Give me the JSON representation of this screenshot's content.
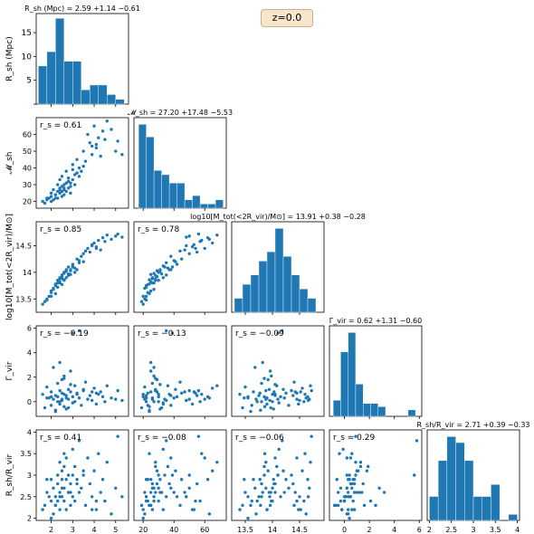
{
  "redshift_label": "z=0.0",
  "colors": {
    "accent": "#1f77b4",
    "annotation_bg": "#f5e6cc",
    "annotation_border": "#c9b48a"
  },
  "chart_data": {
    "type": "scatter",
    "subtype": "corner-plot",
    "variables": [
      {
        "id": "Rsh",
        "title": "R_sh (Mpc) = 2.59 +1.14 −0.61",
        "label": "R_sh (Mpc)",
        "range": [
          1.3,
          5.6
        ],
        "ticks": [
          2,
          3,
          4,
          5
        ],
        "hist_bins": {
          "edges": [
            1.4,
            1.8,
            2.2,
            2.6,
            3.0,
            3.4,
            3.8,
            4.2,
            4.6,
            5.0,
            5.4
          ],
          "counts": [
            8,
            11,
            18,
            9,
            9,
            3,
            4,
            4,
            2,
            1
          ],
          "ylim": [
            0,
            19
          ],
          "yticks": [
            0,
            5,
            10,
            15
          ]
        }
      },
      {
        "id": "Msh",
        "title": "𝓜_sh = 27.20 +17.48 −5.53",
        "label": "𝓜_sh",
        "range": [
          14,
          74
        ],
        "ticks": [
          20,
          40,
          60
        ],
        "hist_bins": {
          "edges": [
            17,
            22,
            27,
            32,
            37,
            42,
            47,
            52,
            57,
            62,
            67,
            72
          ],
          "counts": [
            20,
            17,
            9,
            8,
            6,
            6,
            2,
            3,
            1,
            1,
            2
          ]
        }
      },
      {
        "id": "Mtot",
        "title": "log10[M_tot(<2R_vir)/M⊙] = 13.91 +0.38 −0.28",
        "label": "log10[M_tot(<2R_vir)/M⊙]",
        "range": [
          13.25,
          14.95
        ],
        "ticks": [
          13.5,
          14.0,
          14.5
        ],
        "hist_bins": {
          "edges": [
            13.3,
            13.45,
            13.6,
            13.75,
            13.9,
            14.05,
            14.2,
            14.35,
            14.5,
            14.65,
            14.8
          ],
          "counts": [
            3,
            6,
            8,
            11,
            13,
            18,
            12,
            8,
            5,
            3
          ]
        }
      },
      {
        "id": "Gvir",
        "title": "Γ_vir = 0.62 +1.31 −0.60",
        "label": "Γ_vir",
        "range": [
          -1.2,
          6.2
        ],
        "ticks": [
          0,
          2,
          4,
          6
        ],
        "hist_bins": {
          "edges": [
            -0.9,
            -0.3,
            0.3,
            0.9,
            1.5,
            2.1,
            2.7,
            3.3,
            3.9,
            4.5,
            5.1,
            5.7
          ],
          "counts": [
            5,
            20,
            26,
            10,
            4,
            4,
            3,
            0,
            0,
            0,
            2
          ]
        }
      },
      {
        "id": "Rratio",
        "title": "R_sh/R_vir = 2.71 +0.39 −0.33",
        "label": "R_sh/R_vir",
        "range": [
          1.95,
          4.05
        ],
        "ticks": [
          2.0,
          2.5,
          3.0,
          3.5,
          4.0
        ],
        "hist_bins": {
          "edges": [
            2.0,
            2.2,
            2.4,
            2.6,
            2.8,
            3.0,
            3.2,
            3.4,
            3.6,
            3.8,
            4.0
          ],
          "counts": [
            4,
            10,
            14,
            13,
            10,
            4,
            4,
            6,
            0,
            1
          ]
        }
      }
    ],
    "y_axis_labels": {
      "Msh": "𝓜_sh",
      "Mtot": "log10[M_tot(<2R_vir)/M⊙]",
      "Gvir": "Γ_vir",
      "Rratio": "R_sh/R_vir"
    },
    "left_ticks": {
      "Rsh": [
        5,
        10,
        15
      ],
      "Msh": [
        20,
        30,
        40,
        50,
        60
      ],
      "Mtot": [
        13.5,
        14.0,
        14.5
      ],
      "Gvir": [
        0,
        2,
        4,
        6
      ],
      "Rratio": [
        2.0,
        2.5,
        3.0,
        3.5,
        4.0
      ]
    },
    "y_ranges": {
      "Msh": [
        16,
        70
      ],
      "Mtot": [
        13.25,
        14.95
      ],
      "Gvir": [
        -1.2,
        6.2
      ],
      "Rratio": [
        1.95,
        4.05
      ]
    },
    "correlations": {
      "Msh_Rsh": "r_s = 0.61",
      "Mtot_Rsh": "r_s = 0.85",
      "Mtot_Msh": "r_s = 0.78",
      "Gvir_Rsh": "r_s = −0.19",
      "Gvir_Msh": "r_s = −0.13",
      "Gvir_Mtot": "r_s = −0.09",
      "Rratio_Rsh": "r_s = 0.41",
      "Rratio_Msh": "r_s = −0.08",
      "Rratio_Mtot": "r_s = −0.06",
      "Rratio_Gvir": "r_s = 0.29"
    },
    "samples": {
      "Rsh": [
        1.6,
        1.7,
        1.8,
        1.9,
        2.0,
        2.0,
        2.1,
        2.1,
        2.2,
        2.2,
        2.3,
        2.3,
        2.3,
        2.4,
        2.4,
        2.4,
        2.5,
        2.5,
        2.5,
        2.6,
        2.6,
        2.6,
        2.7,
        2.7,
        2.7,
        2.8,
        2.8,
        2.9,
        2.9,
        3.0,
        3.0,
        3.1,
        3.1,
        3.2,
        3.3,
        3.3,
        3.4,
        3.5,
        3.6,
        3.7,
        3.8,
        3.9,
        4.0,
        4.1,
        4.2,
        4.3,
        4.4,
        4.5,
        4.6,
        4.8,
        5.0,
        5.1,
        5.3,
        2.2,
        2.6,
        3.2,
        2.0,
        2.8,
        3.5,
        4.1,
        1.8,
        2.4,
        3.0,
        3.9,
        2.5,
        2.9
      ],
      "Msh": [
        20,
        19,
        21,
        22,
        23,
        25,
        21,
        27,
        22,
        24,
        26,
        30,
        22,
        25,
        28,
        33,
        23,
        29,
        35,
        24,
        30,
        27,
        26,
        38,
        31,
        28,
        34,
        25,
        29,
        33,
        42,
        36,
        30,
        45,
        35,
        40,
        38,
        50,
        44,
        60,
        55,
        48,
        65,
        52,
        58,
        47,
        62,
        57,
        68,
        63,
        50,
        56,
        48,
        24,
        28,
        37,
        20,
        32,
        41,
        54,
        22,
        27,
        39,
        53,
        26,
        31
      ],
      "Mtot": [
        13.4,
        13.45,
        13.5,
        13.55,
        13.62,
        13.65,
        13.7,
        13.68,
        13.75,
        13.78,
        13.8,
        13.85,
        13.72,
        13.82,
        13.88,
        13.9,
        13.77,
        13.92,
        13.95,
        13.86,
        14.0,
        13.98,
        13.9,
        14.05,
        14.02,
        13.94,
        14.1,
        13.96,
        14.03,
        14.12,
        14.15,
        14.08,
        14.0,
        14.25,
        14.18,
        14.22,
        14.3,
        14.35,
        14.4,
        14.45,
        14.38,
        14.5,
        14.55,
        14.48,
        14.6,
        14.42,
        14.65,
        14.58,
        14.7,
        14.62,
        14.68,
        14.72,
        14.66,
        13.6,
        13.85,
        14.05,
        13.55,
        13.97,
        14.2,
        14.45,
        13.48,
        13.8,
        14.1,
        14.52,
        13.88,
        14.05
      ],
      "Gvir": [
        0.6,
        -0.5,
        1.2,
        0.3,
        -0.3,
        0.8,
        0.2,
        2.8,
        0.5,
        -0.7,
        1.5,
        0.4,
        0.0,
        3.2,
        0.9,
        -0.2,
        0.7,
        1.8,
        0.1,
        -0.4,
        0.6,
        2.1,
        0.3,
        0.5,
        -0.6,
        1.0,
        0.2,
        2.5,
        0.8,
        -0.1,
        0.4,
        1.3,
        0.0,
        0.7,
        5.8,
        0.3,
        -0.3,
        0.9,
        1.6,
        0.2,
        0.5,
        0.1,
        1.1,
        -0.2,
        0.6,
        0.8,
        0.4,
        0.0,
        1.3,
        0.3,
        0.2,
        0.9,
        0.1,
        -0.8,
        1.9,
        0.6,
        0.4,
        -0.5,
        1.0,
        0.7,
        0.3,
        0.0,
        5.6,
        0.8,
        0.2,
        1.4
      ],
      "Rratio": [
        2.2,
        2.3,
        2.6,
        2.5,
        2.4,
        2.9,
        2.1,
        2.7,
        2.5,
        2.3,
        2.8,
        3.0,
        2.4,
        2.6,
        3.3,
        2.2,
        2.9,
        3.1,
        2.5,
        3.5,
        2.7,
        2.4,
        2.2,
        3.4,
        2.9,
        2.6,
        3.0,
        2.3,
        2.8,
        3.6,
        2.5,
        3.2,
        2.4,
        2.9,
        3.8,
        2.6,
        2.7,
        3.0,
        2.3,
        3.4,
        2.8,
        2.5,
        3.1,
        2.2,
        3.5,
        2.6,
        2.9,
        2.4,
        3.3,
        2.1,
        2.7,
        3.9,
        2.5,
        2.3,
        3.2,
        2.8,
        2.0,
        2.6,
        3.1,
        2.4,
        2.9,
        2.5,
        3.0,
        2.2,
        2.7,
        2.6
      ]
    }
  }
}
